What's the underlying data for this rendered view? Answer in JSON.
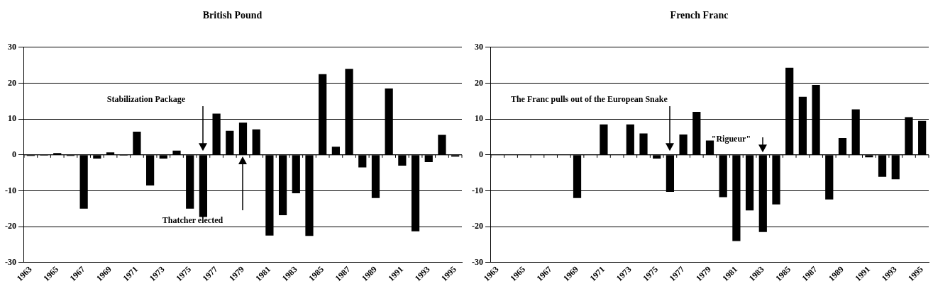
{
  "chart_data": [
    {
      "type": "bar",
      "title": "British Pound",
      "categories": [
        "1963",
        null,
        "1965",
        null,
        "1967",
        null,
        "1969",
        null,
        "1971",
        null,
        "1973",
        null,
        "1975",
        null,
        "1977",
        null,
        "1979",
        null,
        "1981",
        null,
        "1983",
        null,
        "1985",
        null,
        "1987",
        null,
        "1989",
        null,
        "1991",
        null,
        "1993",
        null,
        "1995"
      ],
      "values": [
        -0.3,
        -0.2,
        0.5,
        -0.3,
        -15,
        -1,
        0.7,
        -0.2,
        6.5,
        -8.5,
        -1,
        1.2,
        -15,
        -17.3,
        11.5,
        6.7,
        9,
        7.1,
        -22.5,
        -16.8,
        -10.7,
        -22.6,
        22.5,
        2.3,
        24,
        -3.5,
        -12,
        18.5,
        -3,
        -21.3,
        -2,
        5.6,
        -0.5
      ],
      "color": "#000000",
      "ylim": [
        -30,
        30
      ],
      "yticks": [
        -30,
        -20,
        -10,
        0,
        10,
        20,
        30
      ],
      "grid": "y",
      "annotations": [
        "Stabilization Package",
        "Thatcher elected"
      ]
    },
    {
      "type": "bar",
      "title": "French Franc",
      "categories": [
        "1963",
        null,
        "1965",
        null,
        "1967",
        null,
        "1969",
        null,
        "1971",
        null,
        "1973",
        null,
        "1975",
        null,
        "1977",
        null,
        "1979",
        null,
        "1981",
        null,
        "1983",
        null,
        "1985",
        null,
        "1987",
        null,
        "1989",
        null,
        "1991",
        null,
        "1993",
        null,
        "1995"
      ],
      "values": [
        0,
        0,
        0,
        0,
        0,
        0,
        -12,
        0,
        8.5,
        0,
        8.5,
        6,
        -1,
        -10.3,
        5.7,
        12,
        4,
        -11.8,
        -24,
        -15.5,
        -21.5,
        -13.8,
        24.3,
        16.2,
        19.5,
        -12.4,
        4.7,
        12.7,
        -0.7,
        -6.1,
        -6.8,
        10.5,
        9.5
      ],
      "color": "#000000",
      "ylim": [
        -30,
        30
      ],
      "yticks": [
        -30,
        -20,
        -10,
        0,
        10,
        20,
        30
      ],
      "grid": "y",
      "annotations": [
        "The Franc pulls out of the European Snake",
        "\"Rigueur\""
      ]
    }
  ]
}
